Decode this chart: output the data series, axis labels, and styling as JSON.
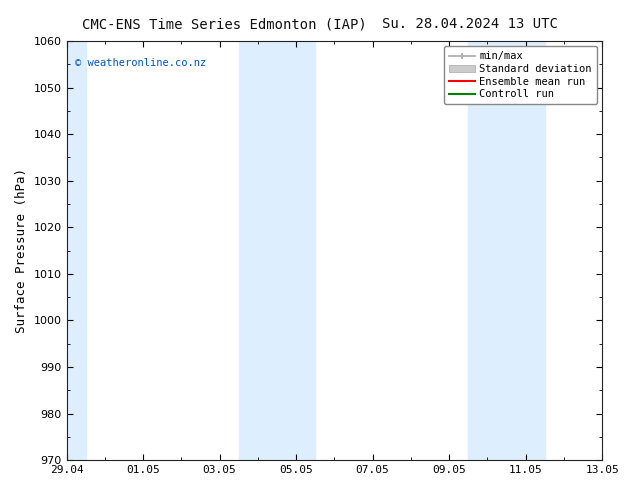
{
  "title_left": "CMC-ENS Time Series Edmonton (IAP)",
  "title_right": "Su. 28.04.2024 13 UTC",
  "ylabel": "Surface Pressure (hPa)",
  "xlabel_ticks": [
    "29.04",
    "01.05",
    "03.05",
    "05.05",
    "07.05",
    "09.05",
    "11.05",
    "13.05"
  ],
  "xlim": [
    0,
    14
  ],
  "ylim": [
    970,
    1060
  ],
  "yticks": [
    970,
    980,
    990,
    1000,
    1010,
    1020,
    1030,
    1040,
    1050,
    1060
  ],
  "xtick_positions": [
    0,
    2,
    4,
    6,
    8,
    10,
    12,
    14
  ],
  "watermark": "© weatheronline.co.nz",
  "watermark_color": "#0055cc",
  "bg_color": "#ffffff",
  "plot_bg_color": "#ffffff",
  "shaded_bands": [
    {
      "x_start": 0,
      "x_end": 0.5,
      "color": "#ddeeff"
    },
    {
      "x_start": 4.5,
      "x_end": 6.5,
      "color": "#ddeeff"
    },
    {
      "x_start": 10.5,
      "x_end": 12.5,
      "color": "#ddeeff"
    }
  ],
  "legend_items": [
    {
      "label": "min/max",
      "color": "#aaaaaa",
      "lw": 1.2
    },
    {
      "label": "Standard deviation",
      "color": "#cccccc",
      "lw": 8
    },
    {
      "label": "Ensemble mean run",
      "color": "#ff0000",
      "lw": 1.5
    },
    {
      "label": "Controll run",
      "color": "#008000",
      "lw": 1.5
    }
  ],
  "title_fontsize": 10,
  "tick_fontsize": 8,
  "label_fontsize": 9,
  "legend_fontsize": 7.5
}
